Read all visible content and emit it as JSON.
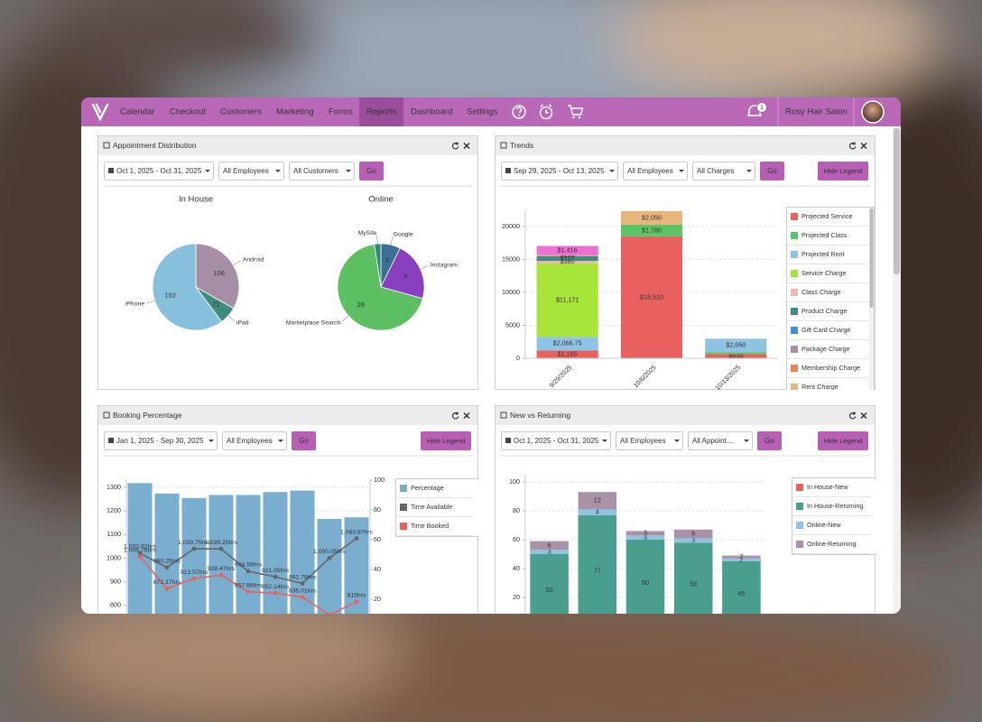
{
  "nav": {
    "items": [
      "Calendar",
      "Checkout",
      "Customers",
      "Marketing",
      "Forms",
      "Reports",
      "Dashboard",
      "Settings"
    ],
    "active": 5,
    "badge": "1",
    "account": "Rosy Hair Salon"
  },
  "panels": [
    {
      "title": "Appointment Distribution",
      "filters": [
        "Oct 1, 2025 - Oct 31, 2025",
        "All Employees",
        "All Customers"
      ],
      "go": "Go"
    },
    {
      "title": "Trends",
      "filters": [
        "Sep 29, 2025 - Oct 13, 2025",
        "All Employees",
        "All Charges"
      ],
      "go": "Go",
      "legend_toggle": "Hide Legend"
    },
    {
      "title": "Booking Percentage",
      "filters": [
        "Jan 1, 2025 - Sep 30, 2025",
        "All Employees"
      ],
      "go": "Go",
      "legend_toggle": "Hide Legend"
    },
    {
      "title": "New vs Returning",
      "filters": [
        "Oct 1, 2025 - Oct 31, 2025",
        "All Employees",
        "All Appoint..."
      ],
      "go": "Go",
      "legend_toggle": "Hide Legend"
    }
  ],
  "chart_data": [
    {
      "type": "pie",
      "title": "In House",
      "categories": [
        "Android",
        "iPad",
        "iPhone"
      ],
      "values": [
        106,
        21,
        192
      ],
      "colors": [
        "#a68fa6",
        "#3f8c7e",
        "#87c0dc"
      ]
    },
    {
      "type": "pie",
      "title": "Online",
      "categories": [
        "Google",
        "Instagram",
        "Marketplace Search",
        "MySite"
      ],
      "values": [
        3,
        9,
        28,
        1
      ],
      "value_labels": [
        "3",
        "9",
        "28",
        null
      ],
      "colors": [
        "#3b6f95",
        "#8a3fc0",
        "#5cbf62",
        "#2d8b7d"
      ]
    },
    {
      "type": "stacked_bar",
      "categories": [
        "9/29/2025",
        "10/6/2025",
        "10/13/2025"
      ],
      "ylim": [
        0,
        22500
      ],
      "yticks": [
        0,
        5000,
        10000,
        15000,
        20000
      ],
      "grid": true,
      "legend": "right",
      "series": [
        {
          "name": "Projected Service",
          "color": "#e8615f",
          "values": [
            1195,
            18510,
            630
          ],
          "value_labels": [
            "$1,195",
            "$18,510",
            "$630"
          ]
        },
        {
          "name": "Projected Class",
          "color": "#5cc466",
          "values": [
            null,
            1780,
            300
          ],
          "value_labels": [
            null,
            "$1,780",
            null
          ]
        },
        {
          "name": "Projected Rent",
          "color": "#8fc3e3",
          "values": [
            2066.75,
            null,
            2050
          ],
          "value_labels": [
            "$2,066.75",
            null,
            "$2,050"
          ]
        },
        {
          "name": "Service Charge",
          "color": "#a8e43a",
          "values": [
            11171,
            null,
            null
          ],
          "value_labels": [
            "$11,171",
            null,
            null
          ]
        },
        {
          "name": "Class Charge",
          "color": "#f2b3b3",
          "values": [
            360,
            null,
            null
          ],
          "value_labels": [
            "$360",
            null,
            null
          ]
        },
        {
          "name": "Product Charge",
          "color": "#3e8b7f",
          "values": [
            727,
            null,
            null
          ],
          "value_labels": [
            "$727",
            null,
            null
          ]
        },
        {
          "name": "Gift Card Charge",
          "color": "#3b8fdc",
          "values": [
            null,
            null,
            null
          ]
        },
        {
          "name": "Package Charge",
          "color": "#a991a6",
          "values": [
            null,
            null,
            null
          ]
        },
        {
          "name": "Membership Charge",
          "color": "#e0894d",
          "values": [
            null,
            null,
            null
          ]
        },
        {
          "name": "Rent Charge",
          "color": "#e8b57c",
          "values": [
            120,
            2050,
            null
          ],
          "value_labels": [
            "$120",
            "$2,050",
            null
          ]
        },
        {
          "color": "#ec6fd3",
          "values": [
            1416,
            null,
            null
          ],
          "value_labels": [
            "$1,416",
            null,
            null
          ]
        }
      ]
    },
    {
      "type": "bar_line",
      "ylim": [
        700,
        1330
      ],
      "yticks": [
        800,
        900,
        1000,
        1100,
        1200,
        1300
      ],
      "y2lim": [
        0,
        100
      ],
      "y2ticks": [
        20,
        40,
        60,
        80,
        100
      ],
      "grid": true,
      "legend": "right",
      "series": [
        {
          "name": "Percentage",
          "color": "#7aaecf",
          "type": "bar",
          "axis": "y2",
          "values": [
            98,
            91,
            88,
            90,
            90,
            92,
            93,
            74,
            75
          ]
        },
        {
          "name": "Time Available",
          "color": "#666666",
          "type": "line",
          "values": [
            1020.92,
            960.25,
            1039.75,
            1039.25,
            944.59,
            921.05,
            892.78,
            1000.05,
            1083.87
          ],
          "value_labels": [
            "1,020.92hrs",
            "960.25hrs",
            "1,039.75hrs",
            "1,039.25hrs",
            "944.59hrs",
            "921.05hrs",
            "892.78hrs",
            "1,000.05hrs",
            "1,083.87hrs"
          ]
        },
        {
          "name": "Time Booked",
          "color": "#e8615f",
          "type": "line",
          "values": [
            1006.76,
            871.17,
            913.57,
            928.47,
            857.66,
            852.14,
            835.01,
            760,
            815
          ],
          "value_labels": [
            "1,006.76hrs",
            "871.17hrs",
            "913.57hrs",
            "928.47hrs",
            "857.66hrs",
            "852.14hrs",
            "835.01hrs",
            null,
            "815hrs"
          ]
        }
      ]
    },
    {
      "type": "stacked_bar",
      "ylim": [
        0,
        105
      ],
      "yticks": [
        20,
        40,
        60,
        80,
        100
      ],
      "grid": true,
      "legend": "right",
      "series": [
        {
          "name": "In House-New",
          "color": "#e8615f",
          "values": [
            null,
            null,
            null,
            null,
            null
          ]
        },
        {
          "name": "In House-Returning",
          "color": "#4a9e8e",
          "values": [
            50,
            77,
            60,
            58,
            45
          ]
        },
        {
          "name": "Online-New",
          "color": "#8fc3e3",
          "values": [
            3,
            4,
            3,
            3,
            2
          ]
        },
        {
          "name": "Online-Returning",
          "color": "#a991a6",
          "values": [
            6,
            12,
            3,
            6,
            2
          ]
        }
      ]
    }
  ]
}
